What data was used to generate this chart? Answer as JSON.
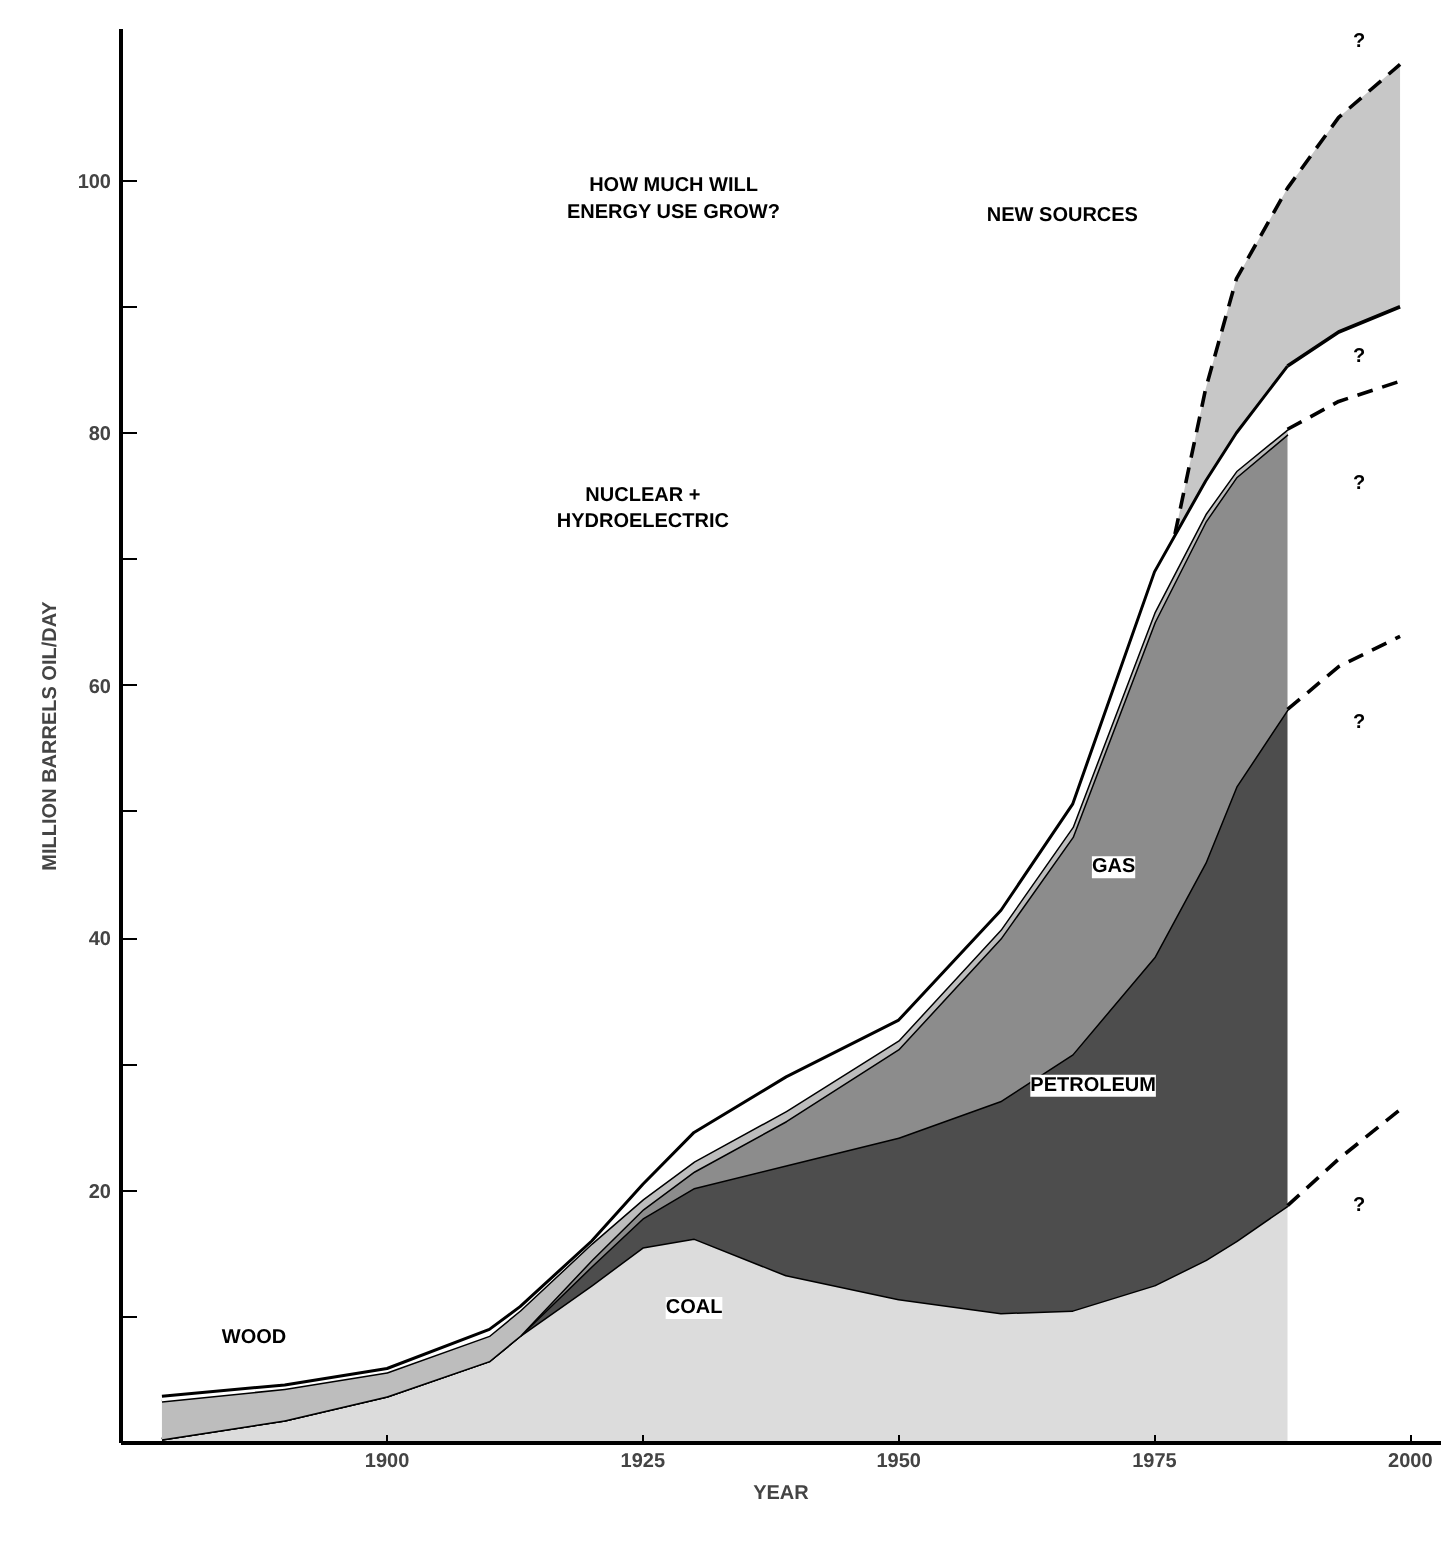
{
  "chart_data": {
    "type": "area",
    "stacked": true,
    "xlabel": "YEAR",
    "ylabel": "MILLION BARRELS OIL/DAY",
    "x": [
      1878,
      1890,
      1900,
      1910,
      1913,
      1920,
      1925,
      1930,
      1939,
      1950,
      1960,
      1967,
      1975,
      1980,
      1983,
      1988
    ],
    "xlim": [
      1874,
      2003
    ],
    "xticks": [
      1900,
      1925,
      1950,
      1975,
      2000
    ],
    "ylim": [
      0,
      112
    ],
    "yticks": [
      {
        "value": 10,
        "label": null
      },
      20,
      {
        "value": 30,
        "label": null
      },
      40,
      {
        "value": 50,
        "label": null
      },
      60,
      {
        "value": 70,
        "label": null
      },
      80,
      {
        "value": 90,
        "label": null
      },
      100
    ],
    "grid": false,
    "series": [
      {
        "color": "#dcdcdc",
        "values": [
          0.3,
          1.8,
          3.7,
          6.5,
          8.5,
          12.5,
          15.5,
          16.2,
          13.3,
          11.4,
          10.3,
          10.5,
          12.5,
          14.5,
          16,
          18.8
        ]
      },
      {
        "color": "#4d4d4d",
        "values": [
          0,
          0,
          0,
          0,
          0,
          1.5,
          2.3,
          4.0,
          8.7,
          12.8,
          16.8,
          20.3,
          26.0,
          31.5,
          36,
          39.3
        ]
      },
      {
        "color": "#8c8c8c",
        "values": [
          0,
          0,
          0,
          0,
          0,
          0.5,
          0.7,
          1.3,
          3.5,
          7,
          12.9,
          17.2,
          26.5,
          27,
          24.5,
          21.8
        ]
      },
      {
        "color": "#bdbdbd",
        "values": [
          3.0,
          2.5,
          1.9,
          2.0,
          2.0,
          1.3,
          0.8,
          0.8,
          0.8,
          0.7,
          0.7,
          0.8,
          0.8,
          0.6,
          0.5,
          0.4
        ]
      },
      {
        "color": "#ffffff",
        "values": [
          0.4,
          0.3,
          0.3,
          0.5,
          0.3,
          0.2,
          1.2,
          2.3,
          2.7,
          1.6,
          1.5,
          1.8,
          3.2,
          2.6,
          3.0,
          5.0
        ]
      },
      {
        "type": "line",
        "line_style": "dashed",
        "color": "#000000",
        "x": [
          1988,
          1993,
          1999
        ],
        "values": [
          18.8,
          22.5,
          26.4
        ]
      },
      {
        "type": "line",
        "line_style": "dashed",
        "color": "#000000",
        "x": [
          1988,
          1993,
          1999
        ],
        "values": [
          58.1,
          61.5,
          63.9
        ]
      },
      {
        "type": "line",
        "line_style": "dashed",
        "color": "#000000",
        "x": [
          1988,
          1993,
          1999
        ],
        "values": [
          80.3,
          82.5,
          84.1
        ]
      },
      {
        "type": "line",
        "line_style": "solid",
        "color": "#000000",
        "x": [
          1988,
          1993,
          1999
        ],
        "values": [
          85.3,
          88,
          90
        ]
      },
      {
        "type": "line",
        "line_style": "dashed",
        "color": "#000000",
        "x": [
          1977,
          1980,
          1983,
          1988,
          1993,
          1999
        ],
        "values": [
          72,
          83.5,
          92.2,
          99.4,
          105,
          109.2
        ],
        "lower": [
          72,
          76.2,
          80,
          85.3,
          88,
          90
        ],
        "upper": [
          72,
          83.5,
          92.2,
          99.4,
          105,
          109.2
        ]
      }
    ],
    "annotations": [
      "COAL",
      "PETROLEUM",
      "GAS",
      "WOOD",
      "NUCLEAR +\nHYDROELECTRIC",
      "HOW MUCH WILL\nENERGY USE GROW?",
      "NEW SOURCES",
      "?",
      "?",
      "?",
      "?",
      "?"
    ]
  }
}
